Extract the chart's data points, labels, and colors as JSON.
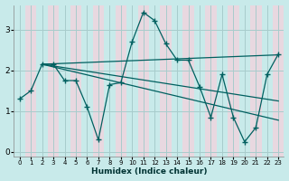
{
  "xlabel": "Humidex (Indice chaleur)",
  "bg_color": "#c8eaea",
  "band_color_even": "#c8eaea",
  "band_color_odd": "#e8d8e0",
  "grid_color": "#a8cccc",
  "line_color": "#006060",
  "xlim": [
    -0.5,
    23.5
  ],
  "ylim": [
    -0.1,
    3.6
  ],
  "yticks": [
    0,
    1,
    2,
    3
  ],
  "xticks": [
    0,
    1,
    2,
    3,
    4,
    5,
    6,
    7,
    8,
    9,
    10,
    11,
    12,
    13,
    14,
    15,
    16,
    17,
    18,
    19,
    20,
    21,
    22,
    23
  ],
  "line1_x": [
    0,
    1,
    2,
    3,
    4,
    5,
    6,
    7,
    8,
    9,
    10,
    11,
    12,
    13,
    14,
    15,
    16,
    17,
    18,
    19,
    20,
    21,
    22,
    23
  ],
  "line1_y": [
    1.3,
    1.5,
    2.15,
    2.15,
    1.75,
    1.75,
    1.1,
    0.3,
    1.65,
    1.7,
    2.7,
    3.42,
    3.22,
    2.65,
    2.25,
    2.25,
    1.6,
    0.85,
    1.9,
    0.85,
    0.25,
    0.6,
    1.9,
    2.4
  ],
  "line2_x": [
    2,
    23
  ],
  "line2_y": [
    2.15,
    2.38
  ],
  "line3_x": [
    2,
    23
  ],
  "line3_y": [
    2.15,
    0.78
  ],
  "line4_x": [
    2,
    23
  ],
  "line4_y": [
    2.15,
    1.25
  ]
}
